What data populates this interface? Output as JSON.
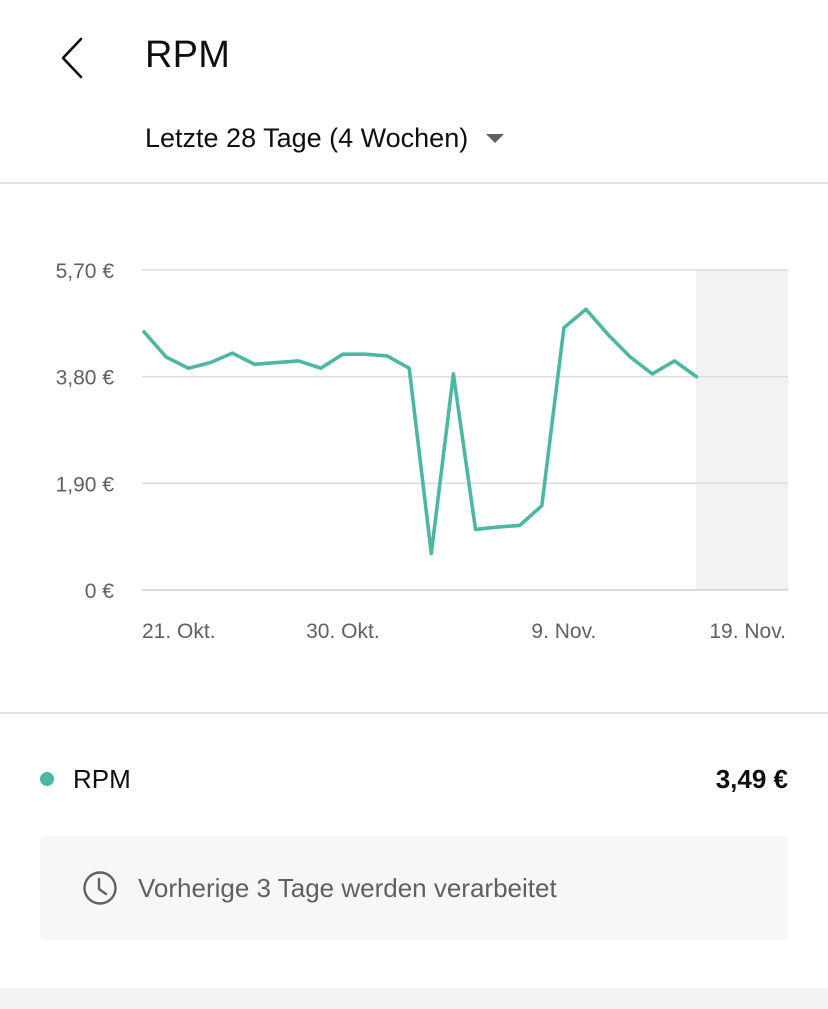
{
  "header": {
    "title": "RPM",
    "back_icon": "chevron-left-icon",
    "range_label": "Letzte 28 Tage (4 Wochen)",
    "range_caret_icon": "caret-down-icon"
  },
  "chart_data": {
    "type": "line",
    "y_tick_labels": [
      "5,70 €",
      "3,80 €",
      "1,90 €",
      "0 €"
    ],
    "y_ticks": [
      5.7,
      3.8,
      1.9,
      0
    ],
    "ylim": [
      0,
      5.7
    ],
    "x_tick_labels": [
      "21. Okt.",
      "30. Okt.",
      "9. Nov.",
      "19. Nov."
    ],
    "x_tick_days": [
      0,
      9,
      19,
      29
    ],
    "x_days": [
      0,
      1,
      2,
      3,
      4,
      5,
      6,
      7,
      8,
      9,
      10,
      11,
      12,
      13,
      14,
      15,
      16,
      17,
      18,
      19,
      20,
      21,
      22,
      23,
      24,
      25,
      26
    ],
    "series": [
      {
        "color": "#4db6a4",
        "values": [
          4.6,
          4.15,
          3.95,
          4.05,
          4.22,
          4.02,
          4.05,
          4.08,
          3.95,
          4.2,
          4.2,
          4.17,
          3.95,
          0.65,
          3.85,
          1.08,
          1.12,
          1.15,
          1.5,
          4.67,
          5.0,
          4.55,
          4.15,
          3.85,
          4.08,
          3.8,
          null
        ],
        "latest_value": "3,49 €"
      }
    ],
    "processing_days": 3,
    "grid": true
  },
  "legend": {
    "name": "RPM",
    "value": "3,49 €",
    "dot_color": "#4db6a4"
  },
  "notice": {
    "icon": "clock-icon",
    "text": "Vorherige 3 Tage werden verarbeitet"
  }
}
